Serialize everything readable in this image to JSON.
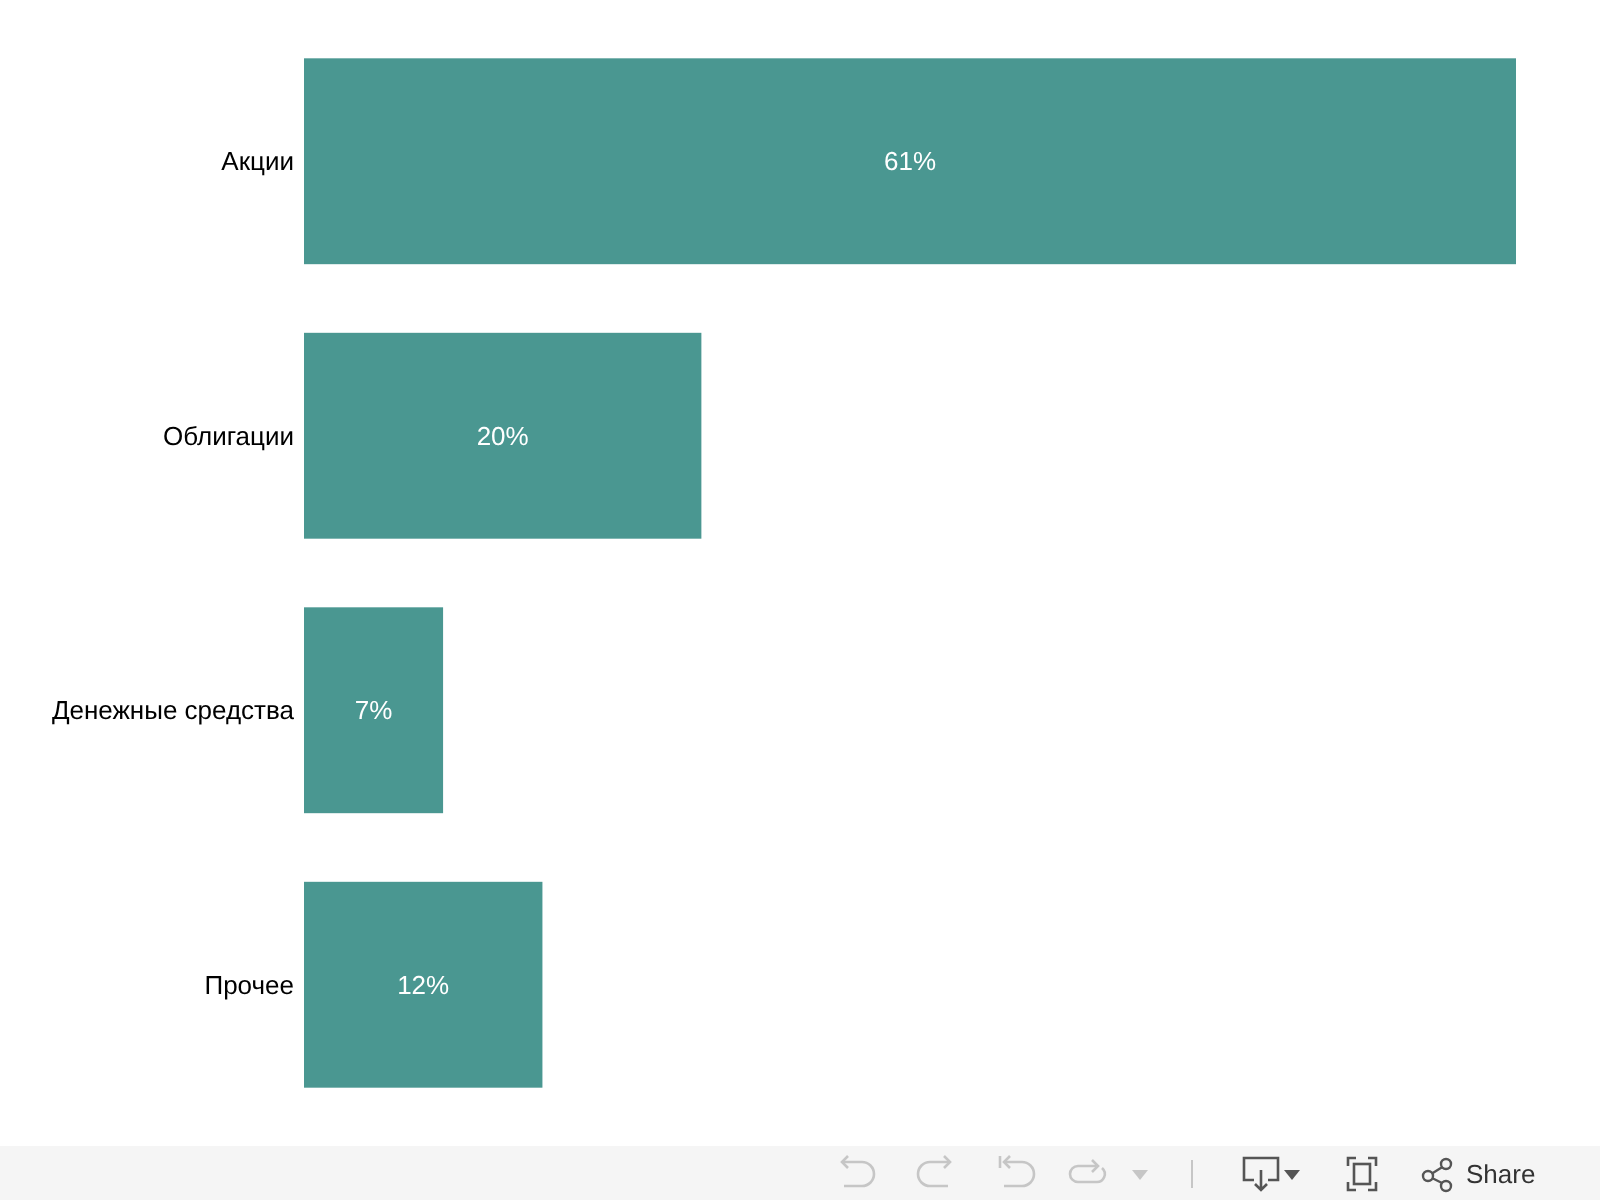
{
  "chart_data": {
    "type": "bar",
    "orientation": "horizontal",
    "categories": [
      "Акции",
      "Облигации",
      "Денежные средства",
      "Прочее"
    ],
    "values": [
      61,
      20,
      7,
      12
    ],
    "value_labels": [
      "61%",
      "20%",
      "7%",
      "12%"
    ],
    "color": "#4a9791",
    "annotations": [
      "Share"
    ]
  }
}
